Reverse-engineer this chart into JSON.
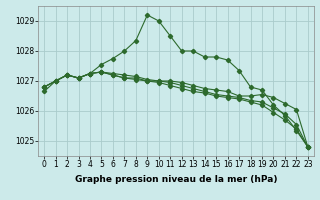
{
  "xlabel": "Graphe pression niveau de la mer (hPa)",
  "background_color": "#cceaea",
  "grid_color": "#aacccc",
  "line_color": "#2d6a2d",
  "x": [
    0,
    1,
    2,
    3,
    4,
    5,
    6,
    7,
    8,
    9,
    10,
    11,
    12,
    13,
    14,
    15,
    16,
    17,
    18,
    19,
    20,
    21,
    22,
    23
  ],
  "series": [
    [
      1026.8,
      1027.0,
      1027.2,
      1027.1,
      1027.25,
      1027.55,
      1027.75,
      1028.0,
      1028.35,
      1029.2,
      1029.0,
      1028.5,
      1028.0,
      1028.0,
      1027.8,
      1027.8,
      1027.7,
      1027.35,
      1026.8,
      1026.7,
      1026.2,
      1025.85,
      1025.35,
      1024.8
    ],
    [
      1026.8,
      1027.0,
      1027.2,
      1027.1,
      1027.25,
      1027.3,
      1027.25,
      1027.2,
      1027.15,
      1027.05,
      1027.0,
      1027.0,
      1026.95,
      1026.85,
      1026.75,
      1026.7,
      1026.65,
      1026.5,
      1026.5,
      1026.55,
      1026.45,
      1026.25,
      1026.05,
      1024.8
    ],
    [
      1026.8,
      1027.0,
      1027.2,
      1027.1,
      1027.25,
      1027.3,
      1027.2,
      1027.1,
      1027.1,
      1027.0,
      1027.0,
      1026.95,
      1026.85,
      1026.75,
      1026.65,
      1026.55,
      1026.5,
      1026.45,
      1026.35,
      1026.3,
      1026.1,
      1025.9,
      1025.55,
      1024.8
    ],
    [
      1026.65,
      1027.0,
      1027.2,
      1027.1,
      1027.25,
      1027.3,
      1027.2,
      1027.1,
      1027.05,
      1027.0,
      1026.95,
      1026.85,
      1026.75,
      1026.65,
      1026.6,
      1026.5,
      1026.45,
      1026.4,
      1026.3,
      1026.2,
      1025.95,
      1025.7,
      1025.4,
      1024.8
    ]
  ],
  "ylim": [
    1024.5,
    1029.5
  ],
  "yticks": [
    1025,
    1026,
    1027,
    1028,
    1029
  ],
  "xticks": [
    0,
    1,
    2,
    3,
    4,
    5,
    6,
    7,
    8,
    9,
    10,
    11,
    12,
    13,
    14,
    15,
    16,
    17,
    18,
    19,
    20,
    21,
    22,
    23
  ],
  "xlabel_fontsize": 6.5,
  "tick_fontsize": 5.5
}
